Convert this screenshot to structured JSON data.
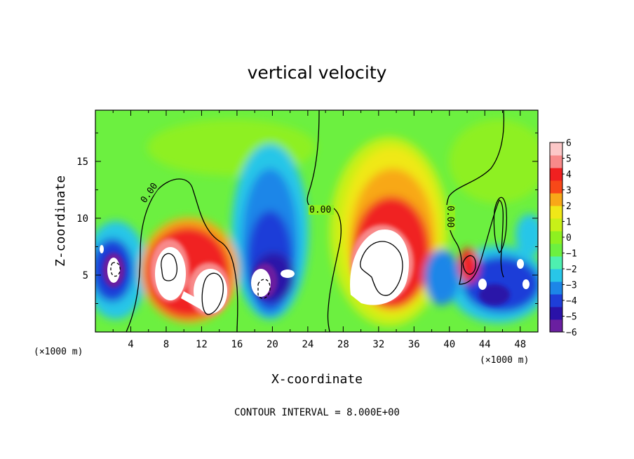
{
  "chart_data": {
    "type": "heatmap",
    "title": "vertical velocity",
    "xlabel": "X-coordinate",
    "ylabel": "Z-coordinate",
    "x_unit_label": "(×1000 m)",
    "x_unit_label_right": "(×1000 m)",
    "xlim": [
      0,
      50
    ],
    "ylim": [
      0,
      19.5
    ],
    "xticks": [
      4,
      8,
      12,
      16,
      20,
      24,
      28,
      32,
      36,
      40,
      44,
      48
    ],
    "xtick_labels": [
      "4",
      "8",
      "12",
      "16",
      "20",
      "24",
      "28",
      "32",
      "36",
      "40",
      "44",
      "48"
    ],
    "yticks": [
      5,
      10,
      15
    ],
    "ytick_labels": [
      "5",
      "10",
      "15"
    ],
    "colorbar": {
      "min": -6,
      "max": 6,
      "ticks": [
        6,
        5,
        4,
        3,
        2,
        1,
        0,
        -1,
        -2,
        -3,
        -4,
        -5,
        -6
      ],
      "tick_labels": [
        "6",
        "5",
        "4",
        "3",
        "2",
        "1",
        "0",
        "−1",
        "−2",
        "−3",
        "−4",
        "−5",
        "−6"
      ],
      "colors": [
        "#6a1fa0",
        "#2a12a8",
        "#1e3ed8",
        "#1c86e8",
        "#28c6e8",
        "#4ef0b0",
        "#6cf040",
        "#8ef020",
        "#c8f018",
        "#f0e818",
        "#f8a818",
        "#f84818",
        "#f02020",
        "#f88a8a",
        "#fcc8c8"
      ]
    },
    "features": [
      {
        "type": "updraft",
        "x": 8,
        "z": 6.5,
        "peak": 6
      },
      {
        "type": "updraft",
        "x": 13,
        "z": 3.5,
        "peak": 6
      },
      {
        "type": "downdraft",
        "x": 2,
        "z": 6,
        "peak": -6
      },
      {
        "type": "downdraft",
        "x": 20,
        "z": 6,
        "peak": -6
      },
      {
        "type": "updraft",
        "x": 32,
        "z": 6,
        "peak": 6
      },
      {
        "type": "updraft",
        "x": 42,
        "z": 6,
        "peak": 4
      },
      {
        "type": "downdraft",
        "x": 46,
        "z": 5,
        "peak": -6
      }
    ],
    "contour_labels": [
      "0.00",
      "0.00",
      "0.00"
    ],
    "contour_interval_text": "CONTOUR INTERVAL = 8.000E+00"
  }
}
